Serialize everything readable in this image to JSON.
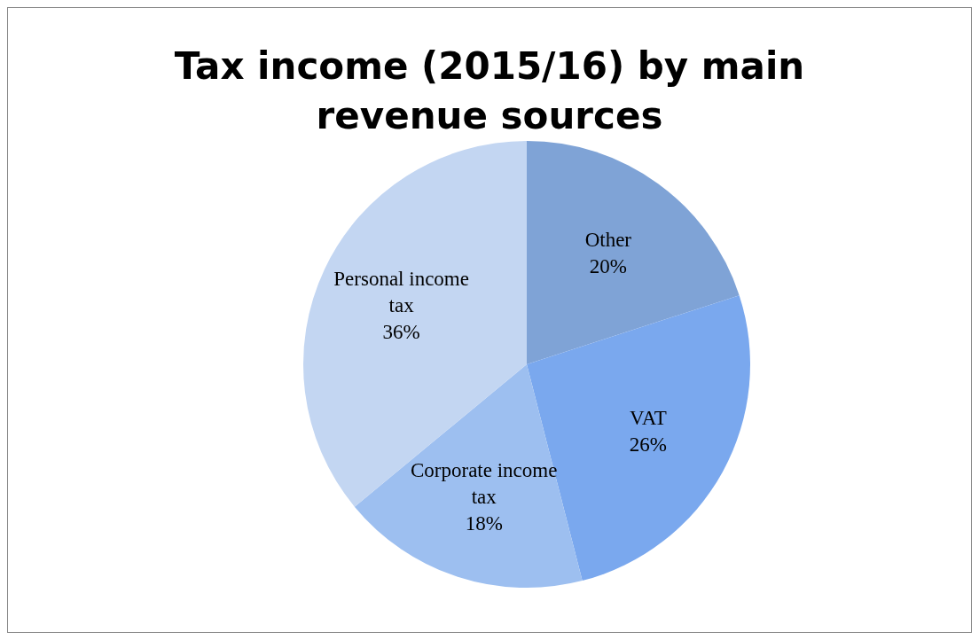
{
  "chart_data": {
    "type": "pie",
    "title": "Tax income (2015/16) by main revenue sources",
    "categories": [
      "Other",
      "VAT",
      "Corporate income tax",
      "Personal income tax"
    ],
    "values": [
      20,
      26,
      18,
      36
    ],
    "value_labels": [
      "20%",
      "26%",
      "18%",
      "36%"
    ],
    "colors": [
      "#7fa3d6",
      "#7aa8ee",
      "#9dbff0",
      "#c3d6f2"
    ],
    "legend": false
  }
}
